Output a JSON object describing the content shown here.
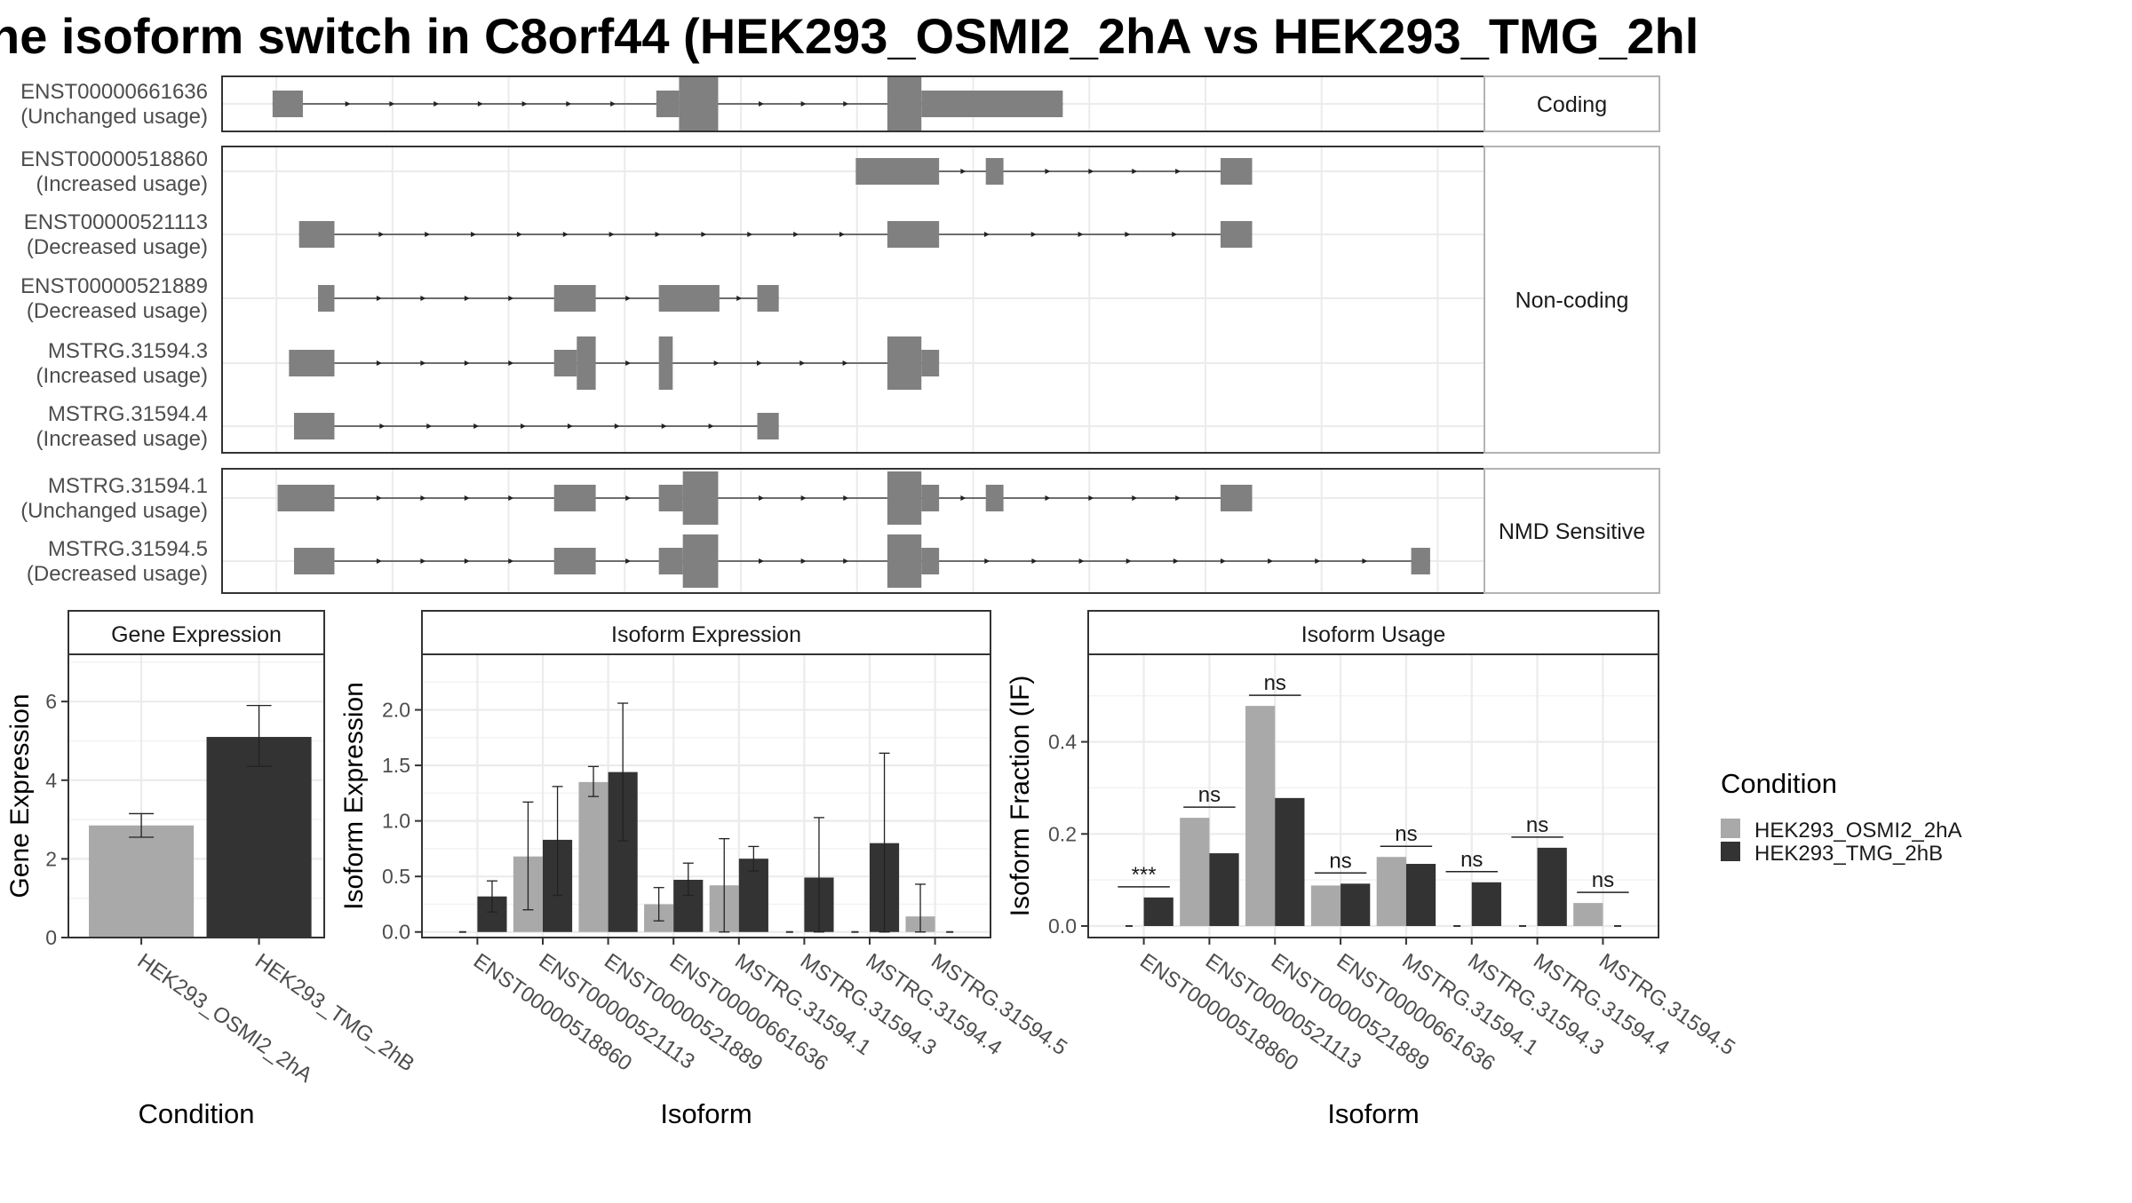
{
  "title": "ne isoform switch in C8orf44 (HEK293_OSMI2_2hA vs HEK293_TMG_2hl",
  "colors": {
    "cond_a": "#a9a9a9",
    "cond_b": "#333333",
    "exon": "#808080"
  },
  "structure": {
    "groups": [
      {
        "label": "Coding",
        "tracks": [
          {
            "id": "ENST00000661636",
            "usage": "(Unchanged usage)",
            "exons": [
              [
                0.04,
                0.064,
                "u"
              ],
              [
                0.344,
                0.362,
                "u"
              ],
              [
                0.362,
                0.393,
                "c"
              ],
              [
                0.527,
                0.554,
                "c"
              ],
              [
                0.554,
                0.666,
                "u"
              ]
            ]
          }
        ]
      },
      {
        "label": "Non-coding",
        "tracks": [
          {
            "id": "ENST00000518860",
            "usage": "(Increased usage)",
            "exons": [
              [
                0.502,
                0.568,
                "u"
              ],
              [
                0.605,
                0.619,
                "u"
              ],
              [
                0.791,
                0.816,
                "u"
              ]
            ]
          },
          {
            "id": "ENST00000521113",
            "usage": "(Decreased usage)",
            "exons": [
              [
                0.061,
                0.089,
                "u"
              ],
              [
                0.527,
                0.568,
                "u"
              ],
              [
                0.791,
                0.816,
                "u"
              ]
            ]
          },
          {
            "id": "ENST00000521889",
            "usage": "(Decreased usage)",
            "exons": [
              [
                0.076,
                0.089,
                "u"
              ],
              [
                0.263,
                0.296,
                "u"
              ],
              [
                0.346,
                0.394,
                "u"
              ],
              [
                0.424,
                0.441,
                "u"
              ]
            ]
          },
          {
            "id": "MSTRG.31594.3",
            "usage": "(Increased usage)",
            "exons": [
              [
                0.053,
                0.089,
                "u"
              ],
              [
                0.263,
                0.281,
                "u"
              ],
              [
                0.281,
                0.296,
                "c"
              ],
              [
                0.346,
                0.357,
                "c"
              ],
              [
                0.527,
                0.554,
                "c"
              ],
              [
                0.554,
                0.568,
                "u"
              ]
            ]
          },
          {
            "id": "MSTRG.31594.4",
            "usage": "(Increased usage)",
            "exons": [
              [
                0.057,
                0.089,
                "u"
              ],
              [
                0.424,
                0.441,
                "u"
              ]
            ]
          }
        ]
      },
      {
        "label": "NMD Sensitive",
        "tracks": [
          {
            "id": "MSTRG.31594.1",
            "usage": "(Unchanged usage)",
            "exons": [
              [
                0.044,
                0.089,
                "u"
              ],
              [
                0.263,
                0.296,
                "u"
              ],
              [
                0.346,
                0.365,
                "u"
              ],
              [
                0.365,
                0.393,
                "c"
              ],
              [
                0.527,
                0.554,
                "c"
              ],
              [
                0.554,
                0.568,
                "u"
              ],
              [
                0.605,
                0.619,
                "u"
              ],
              [
                0.791,
                0.816,
                "u"
              ]
            ]
          },
          {
            "id": "MSTRG.31594.5",
            "usage": "(Decreased usage)",
            "exons": [
              [
                0.057,
                0.089,
                "u"
              ],
              [
                0.263,
                0.296,
                "u"
              ],
              [
                0.346,
                0.365,
                "u"
              ],
              [
                0.365,
                0.393,
                "c"
              ],
              [
                0.527,
                0.554,
                "c"
              ],
              [
                0.554,
                0.568,
                "u"
              ],
              [
                0.942,
                0.957,
                "u"
              ]
            ]
          }
        ]
      }
    ]
  },
  "legend": {
    "title": "Condition",
    "items": [
      "HEK293_OSMI2_2hA",
      "HEK293_TMG_2hB"
    ]
  },
  "chart_data": [
    {
      "type": "bar",
      "title": "Gene Expression",
      "xlabel": "Condition",
      "ylabel": "Gene Expression",
      "ylim": [
        0,
        7.2
      ],
      "yticks": [
        "0",
        "2",
        "4",
        "6"
      ],
      "categories": [
        "HEK293_OSMI2_2hA",
        "HEK293_TMG_2hB"
      ],
      "series": [
        {
          "values": [
            2.85,
            5.1
          ],
          "err_low": [
            2.55,
            4.35
          ],
          "err_high": [
            3.15,
            5.9
          ]
        }
      ]
    },
    {
      "type": "bar",
      "title": "Isoform Expression",
      "xlabel": "Isoform",
      "ylabel": "Isoform Expression",
      "ylim": [
        -0.05,
        2.5
      ],
      "yticks": [
        "0.0",
        "0.5",
        "1.0",
        "1.5",
        "2.0"
      ],
      "categories": [
        "ENST00000518860",
        "ENST00000521113",
        "ENST00000521889",
        "ENST00000661636",
        "MSTRG.31594.1",
        "MSTRG.31594.3",
        "MSTRG.31594.4",
        "MSTRG.31594.5"
      ],
      "series": [
        {
          "name": "HEK293_OSMI2_2hA",
          "values": [
            0.0,
            0.68,
            1.35,
            0.25,
            0.42,
            0.0,
            0.0,
            0.14
          ],
          "err_low": [
            0.0,
            0.2,
            1.22,
            0.1,
            0.0,
            0.0,
            0.0,
            0.0
          ],
          "err_high": [
            0.0,
            1.17,
            1.49,
            0.4,
            0.84,
            0.0,
            0.0,
            0.43
          ]
        },
        {
          "name": "HEK293_TMG_2hB",
          "values": [
            0.32,
            0.83,
            1.44,
            0.47,
            0.66,
            0.49,
            0.8,
            0.0
          ],
          "err_low": [
            0.18,
            0.33,
            0.82,
            0.33,
            0.55,
            0.0,
            0.0,
            0.0
          ],
          "err_high": [
            0.46,
            1.31,
            2.06,
            0.62,
            0.77,
            1.03,
            1.61,
            0.0
          ]
        }
      ]
    },
    {
      "type": "bar",
      "title": "Isoform Usage",
      "xlabel": "Isoform",
      "ylabel": "Isoform Fraction (IF)",
      "ylim": [
        -0.025,
        0.59
      ],
      "yticks": [
        "0.0",
        "0.2",
        "0.4"
      ],
      "categories": [
        "ENST00000518860",
        "ENST00000521113",
        "ENST00000521889",
        "ENST00000661636",
        "MSTRG.31594.1",
        "MSTRG.31594.3",
        "MSTRG.31594.4",
        "MSTRG.31594.5"
      ],
      "series": [
        {
          "name": "HEK293_OSMI2_2hA",
          "values": [
            0.0,
            0.235,
            0.478,
            0.088,
            0.15,
            0.0,
            0.0,
            0.05
          ]
        },
        {
          "name": "HEK293_TMG_2hB",
          "values": [
            0.062,
            0.158,
            0.278,
            0.092,
            0.135,
            0.095,
            0.17,
            0.0
          ]
        }
      ],
      "significance": [
        "***",
        "ns",
        "ns",
        "ns",
        "ns",
        "ns",
        "ns",
        "ns"
      ]
    }
  ]
}
